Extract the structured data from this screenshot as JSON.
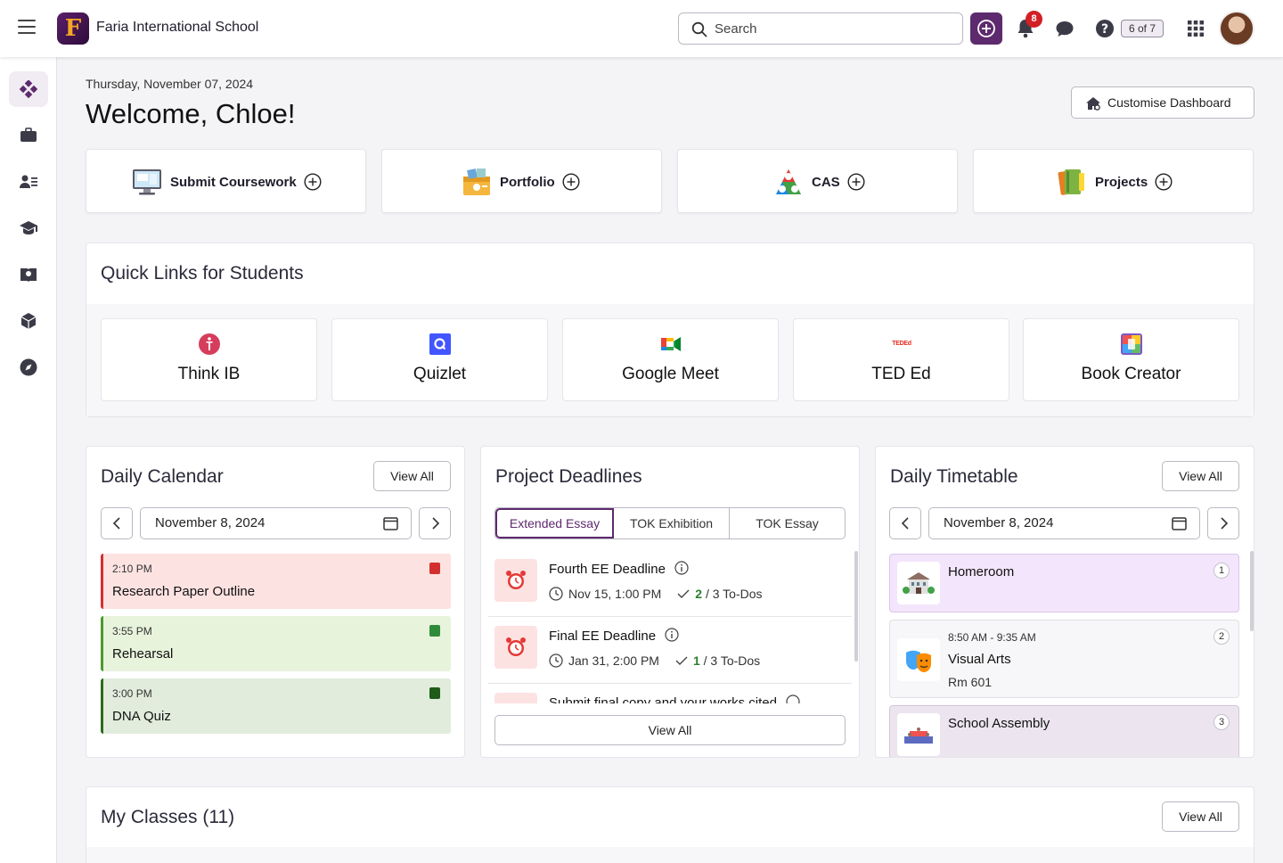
{
  "topbar": {
    "school_name": "Faria International School",
    "logo_letter": "F",
    "search_placeholder": "Search",
    "notification_count": "8",
    "steps_badge": "6 of 7",
    "colors": {
      "brand": "#5e2a6e",
      "badge": "#d11f25"
    }
  },
  "sidenav": {
    "icons": [
      "dashboard-icon",
      "briefcase-icon",
      "students-icon",
      "graduation-cap-icon",
      "library-icon",
      "cube-icon",
      "compass-icon"
    ]
  },
  "header": {
    "date": "Thursday, November 07, 2024",
    "welcome": "Welcome, Chloe!",
    "customise_label": "Customise Dashboard"
  },
  "shortcuts": [
    {
      "label": "Submit Coursework",
      "icon": "monitor-icon"
    },
    {
      "label": "Portfolio",
      "icon": "portfolio-icon"
    },
    {
      "label": "CAS",
      "icon": "cas-triangle-icon"
    },
    {
      "label": "Projects",
      "icon": "notebooks-icon"
    }
  ],
  "quick_links": {
    "title": "Quick Links for Students",
    "items": [
      {
        "label": "Think IB",
        "icon": "think-ib-icon"
      },
      {
        "label": "Quizlet",
        "icon": "quizlet-icon"
      },
      {
        "label": "Google Meet",
        "icon": "google-meet-icon"
      },
      {
        "label": "TED Ed",
        "icon": "ted-ed-icon",
        "icon_text": "TEDEd"
      },
      {
        "label": "Book Creator",
        "icon": "book-creator-icon"
      }
    ]
  },
  "daily_calendar": {
    "title": "Daily Calendar",
    "view_all": "View All",
    "date": "November 8, 2024",
    "events": [
      {
        "time": "2:10 PM",
        "title": "Research Paper Outline",
        "bg": "#fde2e2",
        "accent": "#d32f2f"
      },
      {
        "time": "3:55 PM",
        "title": "Rehearsal",
        "bg": "#e8f3dc",
        "accent": "#4c9a2a"
      },
      {
        "time": "3:00 PM",
        "title": "DNA Quiz",
        "bg": "#e1ecdc",
        "accent": "#2e6b1f"
      }
    ]
  },
  "project_deadlines": {
    "title": "Project Deadlines",
    "tabs": [
      "Extended Essay",
      "TOK Exhibition",
      "TOK Essay"
    ],
    "active_tab": "Extended Essay",
    "items": [
      {
        "title": "Fourth EE Deadline",
        "due": "Nov 15, 1:00 PM",
        "done": "2",
        "todo": " / 3 To-Dos"
      },
      {
        "title": "Final EE Deadline",
        "due": "Jan 31, 2:00 PM",
        "done": "1",
        "todo": " / 3 To-Dos"
      },
      {
        "title": "Submit final copy and your works cited",
        "due": "",
        "done": "",
        "todo": ""
      }
    ],
    "view_all": "View All"
  },
  "daily_timetable": {
    "title": "Daily Timetable",
    "view_all": "View All",
    "date": "November 8, 2024",
    "slots": [
      {
        "num": "1",
        "time": "",
        "title": "Homeroom",
        "room": "",
        "bg": "#f3e5fb",
        "icon": "school-building-icon"
      },
      {
        "num": "2",
        "time": "8:50 AM - 9:35 AM",
        "title": "Visual Arts",
        "room": "Rm 601",
        "bg": "#f7f7f9",
        "icon": "theatre-masks-icon"
      },
      {
        "num": "3",
        "time": "",
        "title": "School Assembly",
        "room": "",
        "bg": "#ece5f0",
        "icon": "assembly-icon"
      }
    ]
  },
  "my_classes": {
    "title": "My Classes (11)",
    "view_all": "View All"
  }
}
